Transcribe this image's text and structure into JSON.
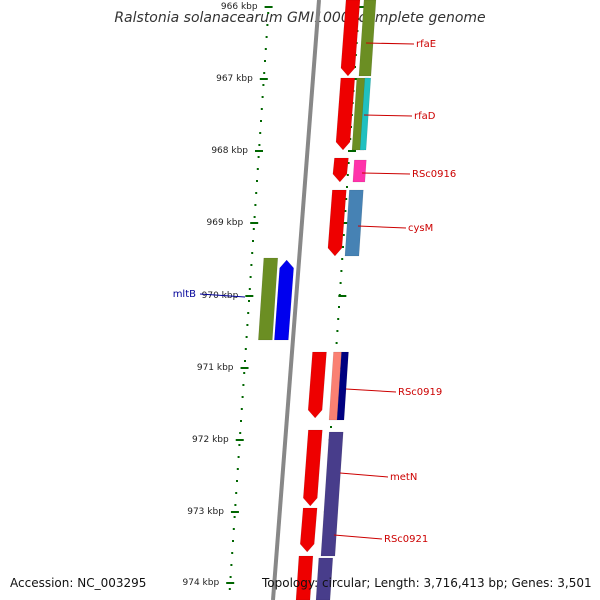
{
  "title": "Ralstonia solanacearum GMI1000, complete genome",
  "footer": {
    "accession": "Accession: NC_003295",
    "topology": "Topology: circular; Length: 3,716,413 bp; Genes: 3,501"
  },
  "scale_labels": [
    "966 kbp",
    "967 kbp",
    "968 kbp",
    "969 kbp",
    "970 kbp",
    "971 kbp",
    "972 kbp",
    "973 kbp",
    "974 kbp"
  ],
  "gene_labels": [
    {
      "name": "rfaE",
      "color": "#cc0000"
    },
    {
      "name": "rfaD",
      "color": "#cc0000"
    },
    {
      "name": "RSc0916",
      "color": "#cc0000"
    },
    {
      "name": "cysM",
      "color": "#cc0000"
    },
    {
      "name": "mltB",
      "color": "#000099"
    },
    {
      "name": "RSc0919",
      "color": "#cc0000"
    },
    {
      "name": "metN",
      "color": "#cc0000"
    },
    {
      "name": "RSc0921",
      "color": "#cc0000"
    }
  ],
  "colors": {
    "cds_forward": "#ee0000",
    "cds_reverse": "#0000ee",
    "backbone": "#888888",
    "tick": "#006600",
    "cog_olive": "#6b8e23",
    "cog_cyan": "#20c0c0",
    "cog_magenta": "#ff33aa",
    "cog_steelblue": "#4682b4",
    "cog_salmon": "#fa8072",
    "cog_navy": "#000080",
    "cog_slateblue": "#483d8b"
  }
}
